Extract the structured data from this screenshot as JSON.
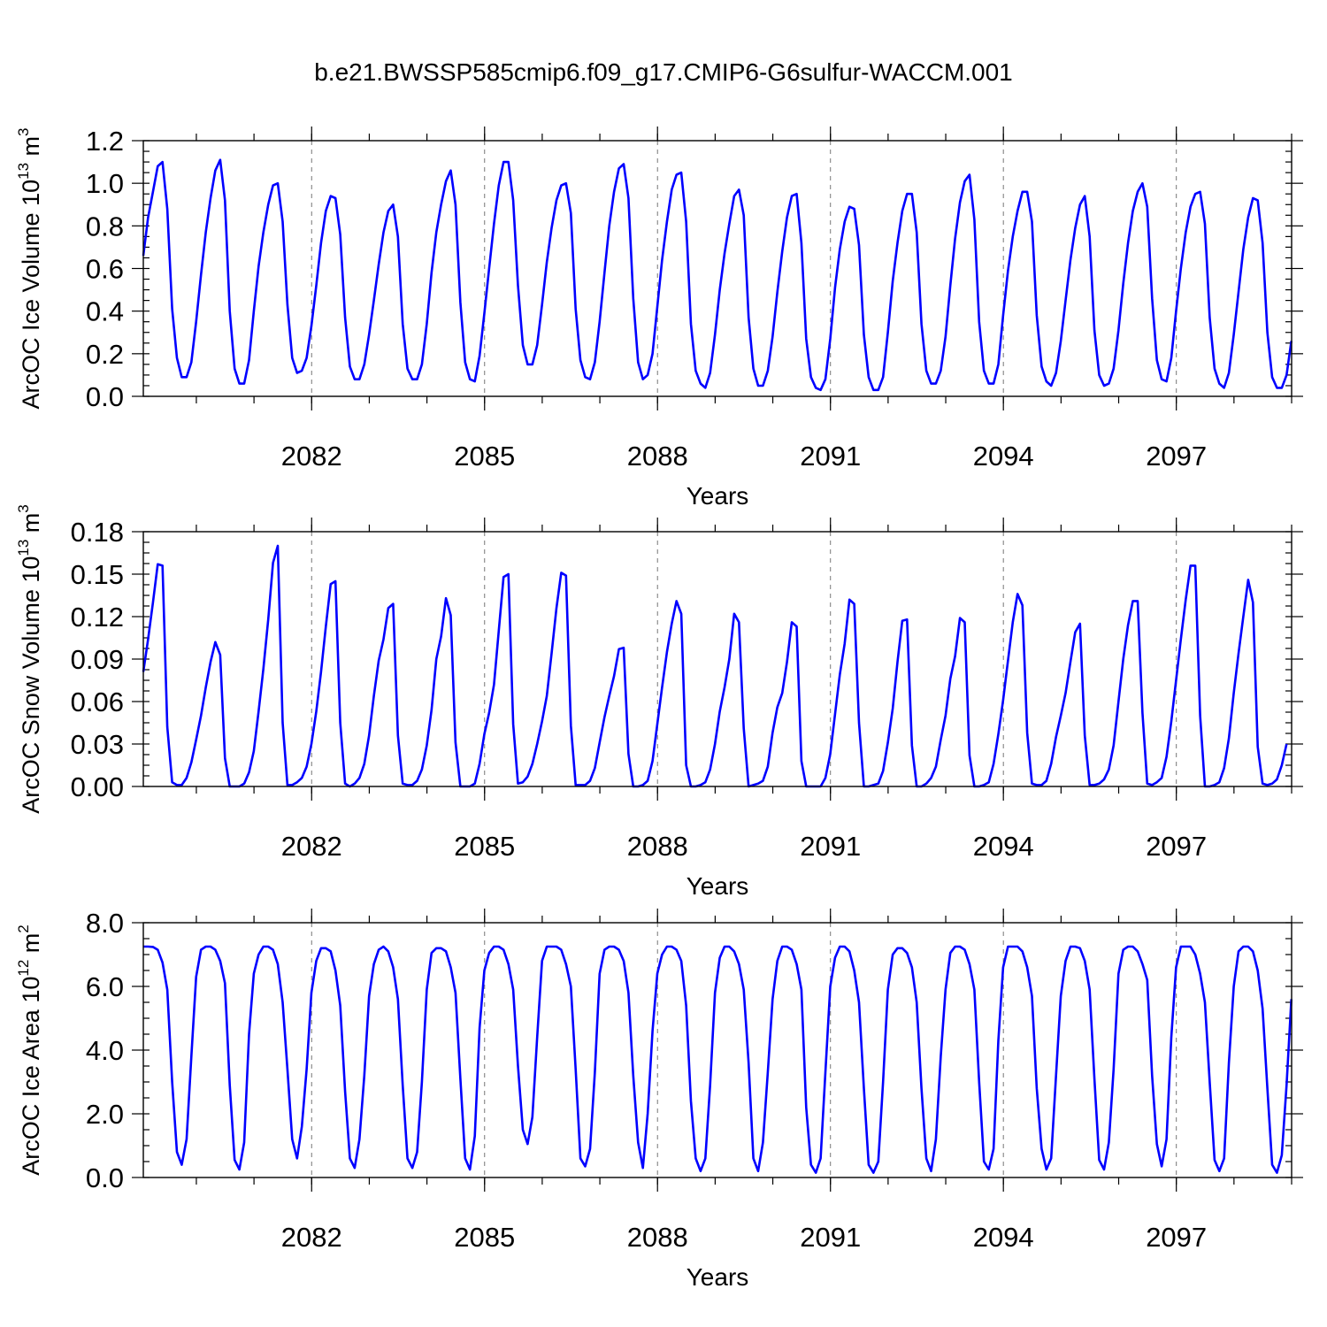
{
  "title": "b.e21.BWSSP585cmip6.f09_g17.CMIP6-G6sulfur-WACCM.001",
  "chart_data": [
    {
      "type": "line",
      "ylabel_prefix": "ArcOC Ice Volume 10",
      "ylabel_exp": "13",
      "ylabel_unit": " m",
      "ylabel_unit_exp": "3",
      "xlabel": "Years",
      "xlim": [
        2079.08,
        2099.0
      ],
      "ylim": [
        0,
        1.2
      ],
      "yticks": [
        "0.0",
        "0.2",
        "0.4",
        "0.6",
        "0.8",
        "1.0",
        "1.2"
      ],
      "xticks": [
        "2082",
        "2085",
        "2088",
        "2091",
        "2094",
        "2097"
      ],
      "grid_x": true,
      "series": [
        {
          "color": "#0000ff",
          "x_start": 2079.08,
          "x_step": 0.08333,
          "values": [
            0.66,
            0.84,
            0.96,
            1.08,
            1.1,
            0.88,
            0.41,
            0.18,
            0.09,
            0.09,
            0.16,
            0.35,
            0.57,
            0.77,
            0.93,
            1.06,
            1.11,
            0.92,
            0.4,
            0.13,
            0.06,
            0.06,
            0.17,
            0.4,
            0.61,
            0.77,
            0.9,
            0.99,
            1.0,
            0.82,
            0.43,
            0.18,
            0.11,
            0.12,
            0.18,
            0.33,
            0.52,
            0.72,
            0.87,
            0.94,
            0.93,
            0.76,
            0.37,
            0.14,
            0.08,
            0.08,
            0.15,
            0.29,
            0.45,
            0.62,
            0.77,
            0.87,
            0.9,
            0.75,
            0.34,
            0.13,
            0.08,
            0.08,
            0.15,
            0.34,
            0.58,
            0.77,
            0.9,
            1.01,
            1.06,
            0.9,
            0.44,
            0.16,
            0.08,
            0.07,
            0.19,
            0.39,
            0.6,
            0.81,
            0.99,
            1.1,
            1.1,
            0.92,
            0.52,
            0.24,
            0.15,
            0.15,
            0.24,
            0.43,
            0.63,
            0.79,
            0.92,
            0.99,
            1.0,
            0.86,
            0.41,
            0.17,
            0.09,
            0.08,
            0.16,
            0.35,
            0.58,
            0.8,
            0.96,
            1.07,
            1.09,
            0.93,
            0.46,
            0.16,
            0.08,
            0.1,
            0.2,
            0.42,
            0.64,
            0.82,
            0.97,
            1.04,
            1.05,
            0.82,
            0.34,
            0.12,
            0.06,
            0.04,
            0.11,
            0.29,
            0.5,
            0.67,
            0.81,
            0.94,
            0.97,
            0.85,
            0.37,
            0.13,
            0.05,
            0.05,
            0.12,
            0.28,
            0.49,
            0.68,
            0.84,
            0.94,
            0.95,
            0.72,
            0.27,
            0.09,
            0.04,
            0.03,
            0.08,
            0.27,
            0.51,
            0.69,
            0.82,
            0.89,
            0.88,
            0.71,
            0.29,
            0.09,
            0.03,
            0.03,
            0.09,
            0.3,
            0.54,
            0.72,
            0.87,
            0.95,
            0.95,
            0.77,
            0.34,
            0.12,
            0.06,
            0.06,
            0.12,
            0.28,
            0.52,
            0.74,
            0.91,
            1.01,
            1.04,
            0.83,
            0.35,
            0.12,
            0.06,
            0.06,
            0.15,
            0.38,
            0.59,
            0.75,
            0.87,
            0.96,
            0.96,
            0.82,
            0.38,
            0.14,
            0.07,
            0.05,
            0.11,
            0.26,
            0.45,
            0.64,
            0.79,
            0.9,
            0.94,
            0.75,
            0.31,
            0.1,
            0.05,
            0.06,
            0.13,
            0.31,
            0.53,
            0.72,
            0.87,
            0.96,
            1.0,
            0.89,
            0.46,
            0.17,
            0.08,
            0.07,
            0.18,
            0.4,
            0.6,
            0.77,
            0.89,
            0.95,
            0.96,
            0.81,
            0.37,
            0.13,
            0.06,
            0.04,
            0.11,
            0.29,
            0.49,
            0.69,
            0.84,
            0.93,
            0.92,
            0.72,
            0.3,
            0.09,
            0.04,
            0.04,
            0.1,
            0.26
          ]
        }
      ]
    },
    {
      "type": "line",
      "ylabel_prefix": "ArcOC Snow Volume 10",
      "ylabel_exp": "13",
      "ylabel_unit": " m",
      "ylabel_unit_exp": "3",
      "xlabel": "Years",
      "xlim": [
        2079.08,
        2099.0
      ],
      "ylim": [
        0,
        0.18
      ],
      "yticks": [
        "0.00",
        "0.03",
        "0.06",
        "0.09",
        "0.12",
        "0.15",
        "0.18"
      ],
      "xticks": [
        "2082",
        "2085",
        "2088",
        "2091",
        "2094",
        "2097"
      ],
      "grid_x": true,
      "series": [
        {
          "color": "#0000ff",
          "x_start": 2079.08,
          "x_step": 0.08333,
          "values": [
            0.081,
            0.104,
            0.13,
            0.157,
            0.156,
            0.042,
            0.003,
            0.001,
            0.001,
            0.006,
            0.017,
            0.033,
            0.05,
            0.07,
            0.088,
            0.102,
            0.093,
            0.02,
            0.0,
            0.0,
            0.0,
            0.002,
            0.01,
            0.025,
            0.053,
            0.083,
            0.118,
            0.158,
            0.17,
            0.045,
            0.001,
            0.001,
            0.003,
            0.006,
            0.014,
            0.03,
            0.053,
            0.081,
            0.113,
            0.143,
            0.145,
            0.045,
            0.002,
            0.0,
            0.002,
            0.006,
            0.016,
            0.036,
            0.064,
            0.089,
            0.104,
            0.126,
            0.129,
            0.036,
            0.002,
            0.001,
            0.001,
            0.004,
            0.012,
            0.029,
            0.054,
            0.09,
            0.106,
            0.133,
            0.121,
            0.031,
            0.0,
            0.0,
            0.0,
            0.002,
            0.016,
            0.037,
            0.052,
            0.072,
            0.11,
            0.148,
            0.15,
            0.044,
            0.002,
            0.003,
            0.007,
            0.016,
            0.03,
            0.046,
            0.064,
            0.094,
            0.126,
            0.151,
            0.149,
            0.043,
            0.001,
            0.001,
            0.001,
            0.004,
            0.013,
            0.031,
            0.049,
            0.064,
            0.078,
            0.097,
            0.098,
            0.023,
            0.0,
            0.0,
            0.001,
            0.004,
            0.018,
            0.044,
            0.07,
            0.095,
            0.115,
            0.131,
            0.122,
            0.015,
            0.0,
            0.0,
            0.001,
            0.003,
            0.012,
            0.03,
            0.053,
            0.07,
            0.09,
            0.122,
            0.116,
            0.041,
            0.0,
            0.001,
            0.002,
            0.004,
            0.014,
            0.038,
            0.056,
            0.066,
            0.088,
            0.116,
            0.113,
            0.018,
            0.0,
            0.0,
            0.0,
            0.0,
            0.006,
            0.023,
            0.051,
            0.079,
            0.101,
            0.132,
            0.129,
            0.045,
            0.0,
            0.0,
            0.001,
            0.002,
            0.011,
            0.031,
            0.055,
            0.088,
            0.117,
            0.118,
            0.029,
            0.0,
            0.0,
            0.002,
            0.006,
            0.014,
            0.033,
            0.05,
            0.076,
            0.092,
            0.119,
            0.116,
            0.022,
            0.0,
            0.0,
            0.001,
            0.003,
            0.016,
            0.037,
            0.061,
            0.089,
            0.116,
            0.136,
            0.128,
            0.038,
            0.002,
            0.001,
            0.001,
            0.004,
            0.016,
            0.035,
            0.05,
            0.066,
            0.088,
            0.109,
            0.115,
            0.036,
            0.001,
            0.001,
            0.002,
            0.005,
            0.012,
            0.029,
            0.06,
            0.09,
            0.114,
            0.131,
            0.131,
            0.052,
            0.002,
            0.001,
            0.003,
            0.006,
            0.021,
            0.046,
            0.075,
            0.104,
            0.132,
            0.156,
            0.156,
            0.05,
            0.0,
            0.0,
            0.001,
            0.003,
            0.013,
            0.034,
            0.066,
            0.094,
            0.12,
            0.146,
            0.13,
            0.028,
            0.002,
            0.001,
            0.002,
            0.005,
            0.015,
            0.03
          ]
        }
      ]
    },
    {
      "type": "line",
      "ylabel_prefix": "ArcOC Ice Area 10",
      "ylabel_exp": "12",
      "ylabel_unit": " m",
      "ylabel_unit_exp": "2",
      "xlabel": "Years",
      "xlim": [
        2079.08,
        2099.0
      ],
      "ylim": [
        0,
        8.0
      ],
      "yticks": [
        "0.0",
        "2.0",
        "4.0",
        "6.0",
        "8.0"
      ],
      "xticks": [
        "2082",
        "2085",
        "2088",
        "2091",
        "2094",
        "2097"
      ],
      "grid_x": true,
      "series": [
        {
          "color": "#0000ff",
          "x_start": 2079.08,
          "x_step": 0.08333,
          "values": [
            7.25,
            7.25,
            7.24,
            7.15,
            6.75,
            5.9,
            3.0,
            0.8,
            0.4,
            1.2,
            3.8,
            6.3,
            7.15,
            7.25,
            7.25,
            7.15,
            6.8,
            6.1,
            2.9,
            0.55,
            0.25,
            1.1,
            4.5,
            6.4,
            7.0,
            7.25,
            7.25,
            7.15,
            6.7,
            5.5,
            3.4,
            1.2,
            0.6,
            1.6,
            3.4,
            5.8,
            6.8,
            7.2,
            7.2,
            7.1,
            6.5,
            5.4,
            2.7,
            0.6,
            0.3,
            1.2,
            3.2,
            5.7,
            6.7,
            7.15,
            7.25,
            7.1,
            6.6,
            5.6,
            2.9,
            0.6,
            0.3,
            0.8,
            3.0,
            5.9,
            7.05,
            7.2,
            7.2,
            7.1,
            6.6,
            5.8,
            3.1,
            0.6,
            0.25,
            1.3,
            4.7,
            6.5,
            7.05,
            7.25,
            7.25,
            7.15,
            6.7,
            5.9,
            3.5,
            1.5,
            1.05,
            1.9,
            4.4,
            6.8,
            7.25,
            7.25,
            7.25,
            7.15,
            6.7,
            6.0,
            3.4,
            0.6,
            0.35,
            0.9,
            3.3,
            6.4,
            7.15,
            7.25,
            7.25,
            7.15,
            6.8,
            5.8,
            3.2,
            1.1,
            0.3,
            2.0,
            4.6,
            6.4,
            7.0,
            7.25,
            7.25,
            7.15,
            6.8,
            5.4,
            2.4,
            0.6,
            0.2,
            0.6,
            2.9,
            5.8,
            6.9,
            7.25,
            7.25,
            7.1,
            6.7,
            5.9,
            3.6,
            0.6,
            0.2,
            1.1,
            3.3,
            5.6,
            6.8,
            7.25,
            7.25,
            7.15,
            6.7,
            5.9,
            2.2,
            0.4,
            0.15,
            0.6,
            3.3,
            6.0,
            6.9,
            7.25,
            7.25,
            7.1,
            6.5,
            5.5,
            2.8,
            0.4,
            0.15,
            0.5,
            3.0,
            5.9,
            7.0,
            7.2,
            7.2,
            7.05,
            6.6,
            5.5,
            2.8,
            0.6,
            0.2,
            1.2,
            3.8,
            5.9,
            7.05,
            7.25,
            7.25,
            7.15,
            6.7,
            5.9,
            3.0,
            0.5,
            0.25,
            0.9,
            4.3,
            6.6,
            7.25,
            7.25,
            7.25,
            7.1,
            6.6,
            5.7,
            2.8,
            0.9,
            0.25,
            0.6,
            3.2,
            5.7,
            6.8,
            7.25,
            7.25,
            7.2,
            6.8,
            5.9,
            3.1,
            0.55,
            0.25,
            1.1,
            3.4,
            6.4,
            7.15,
            7.25,
            7.25,
            7.1,
            6.7,
            6.2,
            3.2,
            1.05,
            0.35,
            1.2,
            4.4,
            6.6,
            7.25,
            7.25,
            7.25,
            7.0,
            6.4,
            5.5,
            3.0,
            0.55,
            0.2,
            0.6,
            3.6,
            6.0,
            7.1,
            7.25,
            7.25,
            7.1,
            6.5,
            5.3,
            2.8,
            0.4,
            0.15,
            0.7,
            2.9,
            5.6
          ]
        }
      ]
    }
  ]
}
